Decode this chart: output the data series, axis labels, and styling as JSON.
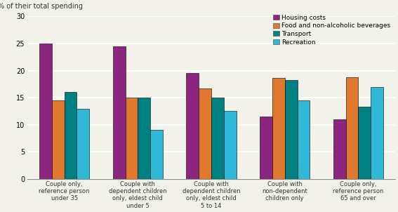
{
  "title": "% of their total spending",
  "categories": [
    "Couple only,\nreference person\nunder 35",
    "Couple with\ndependent children\nonly, eldest child\nunder 5",
    "Couple with\ndependent children\nonly, eldest child\n5 to 14",
    "Couple with\nnon-dependent\nchildren only",
    "Couple only,\nreference person\n65 and over"
  ],
  "series": {
    "Housing costs": [
      25.0,
      24.5,
      19.5,
      11.5,
      11.0
    ],
    "Food and non-alcoholic beverages": [
      14.5,
      15.0,
      16.7,
      18.7,
      18.8
    ],
    "Transport": [
      16.0,
      15.0,
      15.0,
      18.3,
      13.3
    ],
    "Recreation": [
      13.0,
      9.0,
      12.5,
      14.5,
      17.0
    ]
  },
  "colors": {
    "Housing costs": "#8b2580",
    "Food and non-alcoholic beverages": "#e07830",
    "Transport": "#008080",
    "Recreation": "#30b8d8"
  },
  "legend_order": [
    "Housing costs",
    "Food and non-alcoholic beverages",
    "Transport",
    "Recreation"
  ],
  "ylim": [
    0,
    30
  ],
  "yticks": [
    0,
    5,
    10,
    15,
    20,
    25,
    30
  ],
  "grid_color": "#ffffff",
  "background_color": "#f2f2ea",
  "bar_edge_color": "#000000",
  "bar_width": 0.17
}
